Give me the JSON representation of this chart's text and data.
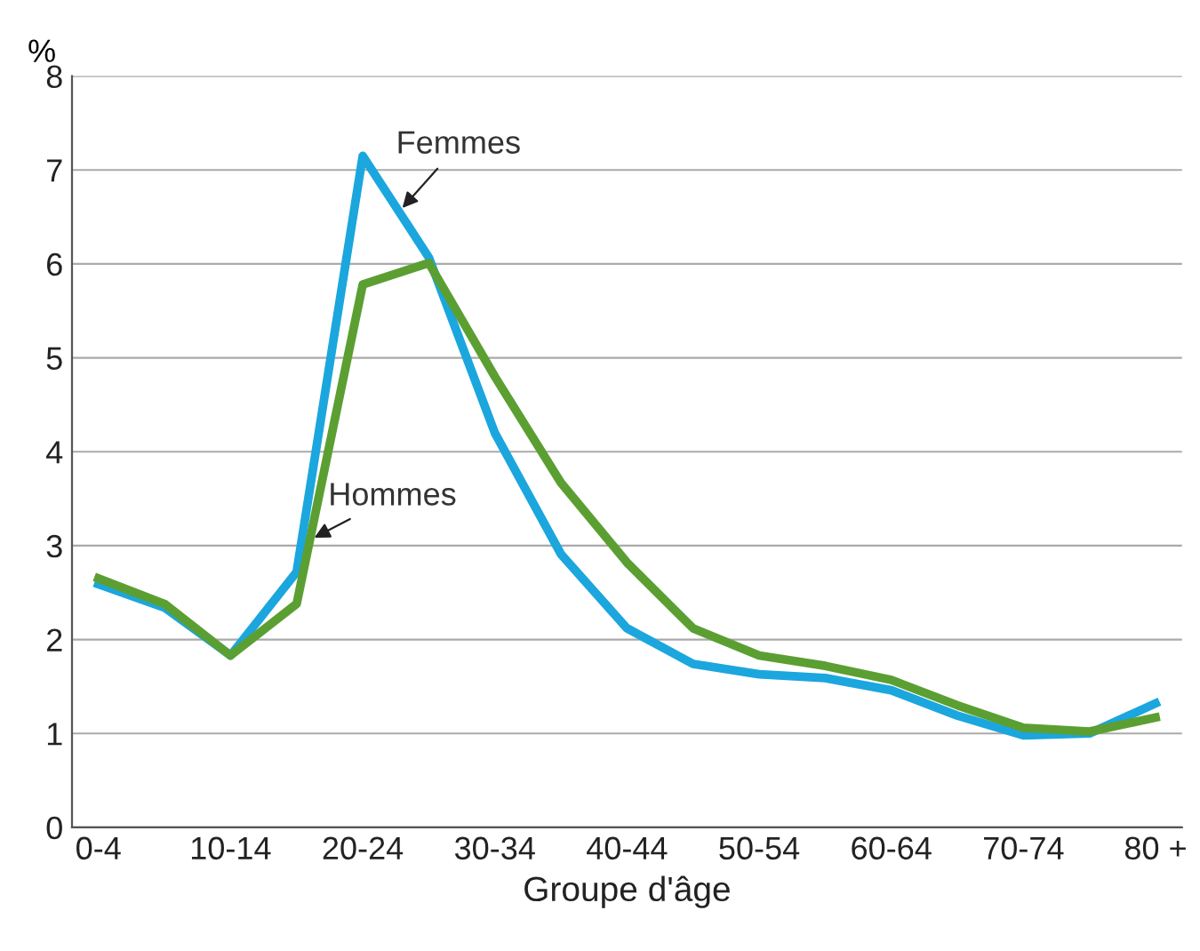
{
  "chart_data": {
    "type": "line",
    "xlabel": "Groupe d'âge",
    "ylabel": "%",
    "categories": [
      "0-4",
      null,
      "10-14",
      null,
      "20-24",
      null,
      "30-34",
      null,
      "40-44",
      null,
      "50-54",
      null,
      "60-64",
      null,
      "70-74",
      null,
      "80 +"
    ],
    "series": [
      {
        "name": "Femmes",
        "color": "#1ba6de",
        "values": [
          2.59,
          2.34,
          1.83,
          2.72,
          7.15,
          6.07,
          4.2,
          2.91,
          2.12,
          1.74,
          1.63,
          1.59,
          1.46,
          1.19,
          0.98,
          1.0,
          1.32
        ]
      },
      {
        "name": "Hommes",
        "color": "#5b9f32",
        "values": [
          2.65,
          2.38,
          1.83,
          2.38,
          5.78,
          6.01,
          4.8,
          3.67,
          2.82,
          2.12,
          1.83,
          1.72,
          1.57,
          1.3,
          1.06,
          1.02,
          1.17
        ]
      }
    ],
    "ylim": [
      0,
      8
    ],
    "yticks": [
      0,
      1,
      2,
      3,
      4,
      5,
      6,
      7,
      8
    ],
    "grid": "y",
    "legend": false,
    "marker": "none",
    "line_style": "solid"
  }
}
